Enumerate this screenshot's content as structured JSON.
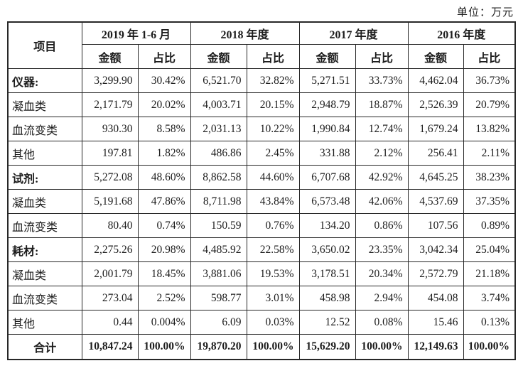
{
  "unit_label": "单位：万元",
  "table": {
    "item_header": "项目",
    "period_headers": [
      "2019 年 1-6 月",
      "2018 年度",
      "2017 年度",
      "2016 年度"
    ],
    "sub_headers": {
      "amount": "金额",
      "ratio": "占比"
    },
    "rows": [
      {
        "label": "仪器:",
        "style": "category",
        "values": [
          "3,299.90",
          "30.42%",
          "6,521.70",
          "32.82%",
          "5,271.51",
          "33.73%",
          "4,462.04",
          "36.73%"
        ]
      },
      {
        "label": "凝血类",
        "style": "sub",
        "values": [
          "2,171.79",
          "20.02%",
          "4,003.71",
          "20.15%",
          "2,948.79",
          "18.87%",
          "2,526.39",
          "20.79%"
        ]
      },
      {
        "label": "血流变类",
        "style": "sub",
        "values": [
          "930.30",
          "8.58%",
          "2,031.13",
          "10.22%",
          "1,990.84",
          "12.74%",
          "1,679.24",
          "13.82%"
        ]
      },
      {
        "label": "其他",
        "style": "sub",
        "values": [
          "197.81",
          "1.82%",
          "486.86",
          "2.45%",
          "331.88",
          "2.12%",
          "256.41",
          "2.11%"
        ]
      },
      {
        "label": "试剂:",
        "style": "category",
        "values": [
          "5,272.08",
          "48.60%",
          "8,862.58",
          "44.60%",
          "6,707.68",
          "42.92%",
          "4,645.25",
          "38.23%"
        ]
      },
      {
        "label": "凝血类",
        "style": "sub",
        "values": [
          "5,191.68",
          "47.86%",
          "8,711.98",
          "43.84%",
          "6,573.48",
          "42.06%",
          "4,537.69",
          "37.35%"
        ]
      },
      {
        "label": "血流变类",
        "style": "sub",
        "values": [
          "80.40",
          "0.74%",
          "150.59",
          "0.76%",
          "134.20",
          "0.86%",
          "107.56",
          "0.89%"
        ]
      },
      {
        "label": "耗材:",
        "style": "category",
        "values": [
          "2,275.26",
          "20.98%",
          "4,485.92",
          "22.58%",
          "3,650.02",
          "23.35%",
          "3,042.34",
          "25.04%"
        ]
      },
      {
        "label": "凝血类",
        "style": "sub",
        "values": [
          "2,001.79",
          "18.45%",
          "3,881.06",
          "19.53%",
          "3,178.51",
          "20.34%",
          "2,572.79",
          "21.18%"
        ]
      },
      {
        "label": "血流变类",
        "style": "sub",
        "values": [
          "273.04",
          "2.52%",
          "598.77",
          "3.01%",
          "458.98",
          "2.94%",
          "454.08",
          "3.74%"
        ]
      },
      {
        "label": "其他",
        "style": "sub",
        "values": [
          "0.44",
          "0.004%",
          "6.09",
          "0.03%",
          "12.52",
          "0.08%",
          "15.46",
          "0.13%"
        ]
      },
      {
        "label": "合计",
        "style": "total",
        "values": [
          "10,847.24",
          "100.00%",
          "19,870.20",
          "100.00%",
          "15,629.20",
          "100.00%",
          "12,149.63",
          "100.00%"
        ]
      }
    ]
  },
  "colors": {
    "text": "#1c1c1c",
    "border": "#272727",
    "background": "#ffffff"
  }
}
